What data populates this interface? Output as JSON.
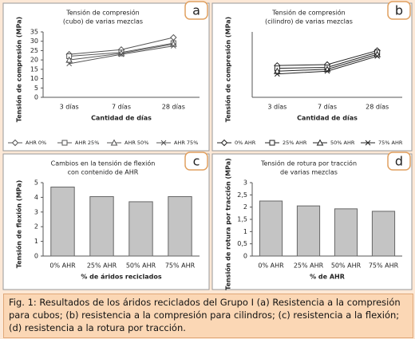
{
  "chart_data": [
    {
      "type": "line",
      "panel_label": "a",
      "title": [
        "Tensión de compresión",
        "(cubo) de varias mezclas"
      ],
      "x_label": "Cantidad de días",
      "y_label": "Tensión de compresión (MPa)",
      "categories": [
        "3 días",
        "7 días",
        "28 días"
      ],
      "ylim": [
        0,
        35
      ],
      "yticks": [
        0,
        5,
        10,
        15,
        20,
        25,
        30,
        35
      ],
      "series": [
        {
          "name": "AHR 0%",
          "color": "#555555",
          "values": [
            23,
            25.5,
            32
          ]
        },
        {
          "name": "AHR 25%",
          "color": "#555555",
          "values": [
            22,
            24,
            29
          ]
        },
        {
          "name": "AHR 50%",
          "color": "#555555",
          "values": [
            20,
            23.5,
            28.5
          ]
        },
        {
          "name": "AHR 75%",
          "color": "#555555",
          "values": [
            18,
            23,
            27.5
          ]
        }
      ]
    },
    {
      "type": "line",
      "panel_label": "b",
      "title": [
        "Tensión de compresión",
        "(cilindro) de varias mezclas"
      ],
      "x_label": "Cantidad de días",
      "y_label": "Tensión de compresión (MPa)",
      "categories": [
        "3 días",
        "7 días",
        "28 días"
      ],
      "ylim": [
        0,
        35
      ],
      "yticks": [],
      "series": [
        {
          "name": "0% AHR",
          "color": "#222222",
          "values": [
            17,
            17.5,
            25
          ]
        },
        {
          "name": "25% AHR",
          "color": "#222222",
          "values": [
            15.5,
            16,
            24
          ]
        },
        {
          "name": "50% AHR",
          "color": "#222222",
          "values": [
            14,
            15,
            23
          ]
        },
        {
          "name": "75% AHR",
          "color": "#222222",
          "values": [
            12.5,
            14,
            22
          ]
        }
      ]
    },
    {
      "type": "bar",
      "panel_label": "c",
      "title": [
        "Cambios en la tensión de flexión",
        "con contenido de AHR"
      ],
      "x_label": "% de áridos reciclados",
      "y_label": "Tensión de flexión (MPa)",
      "categories": [
        "0% AHR",
        "25% AHR",
        "50% AHR",
        "75% AHR"
      ],
      "values": [
        4.7,
        4.05,
        3.7,
        4.05
      ],
      "color": "#c4c4c4",
      "ylim": [
        0,
        5
      ],
      "yticks": [
        0,
        1,
        2,
        3,
        4,
        5
      ]
    },
    {
      "type": "bar",
      "panel_label": "d",
      "title": [
        "Tensión de rotura por tracción",
        "de varias mezclas"
      ],
      "x_label": "% de AHR",
      "y_label": "Tensión de rotura por tracción (MPa)",
      "categories": [
        "0% AHR",
        "25% AHR",
        "50% AHR",
        "75% AHR"
      ],
      "values": [
        2.25,
        2.05,
        1.93,
        1.83
      ],
      "color": "#c4c4c4",
      "ylim": [
        0,
        3
      ],
      "yticks": [
        0,
        {
          "value": 0.5,
          "label": "0,5"
        },
        1,
        {
          "value": 1.5,
          "label": "1,5"
        },
        2,
        {
          "value": 2.5,
          "label": "2,5"
        },
        3
      ]
    }
  ],
  "caption": "Fig. 1: Resultados de los áridos reciclados del Grupo I  (a) Resistencia a la compresión para cubos; (b) resistencia a la compresión para cilindros; (c) resistencia a la flexión; (d) resistencia a la rotura por tracción."
}
